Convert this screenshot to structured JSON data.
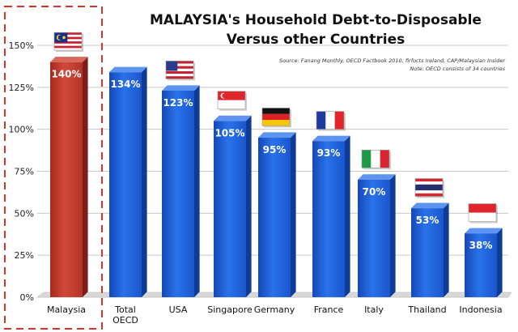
{
  "chart_data": {
    "type": "bar",
    "title_line1": "MALAYSIA's Household Debt-to-Disposable",
    "title_line2": "Versus other Countries",
    "source_line1": "Source: Fanang Monthly, OECD Factbook 2010, firfocts Ireland, CAP/Malaysian Insider",
    "source_line2": "Note: OECD consists of 34 countries",
    "categories": [
      "Malaysia",
      "Total OECD",
      "USA",
      "Singapore",
      "Germany",
      "France",
      "Italy",
      "Thailand",
      "Indonesia"
    ],
    "values": [
      140,
      134,
      123,
      105,
      95,
      93,
      70,
      53,
      38
    ],
    "value_labels": [
      "140%",
      "134%",
      "123%",
      "105%",
      "95%",
      "93%",
      "70%",
      "53%",
      "38%"
    ],
    "y_ticks": [
      "0%",
      "25%",
      "50%",
      "75%",
      "100%",
      "125%",
      "150%"
    ],
    "ylim": [
      0,
      150
    ],
    "grid": true,
    "legend": "none",
    "highlight_category": "Malaysia",
    "colors": {
      "highlight": "#c0392b",
      "bar": "#1e5fd6",
      "highlight_box": "#d9342b",
      "grid": "#c8c8c8"
    },
    "flag_icons": [
      "malaysia-flag-icon",
      "",
      "usa-flag-icon",
      "singapore-flag-icon",
      "germany-flag-icon",
      "france-flag-icon",
      "italy-flag-icon",
      "thailand-flag-icon",
      "indonesia-flag-icon"
    ]
  }
}
